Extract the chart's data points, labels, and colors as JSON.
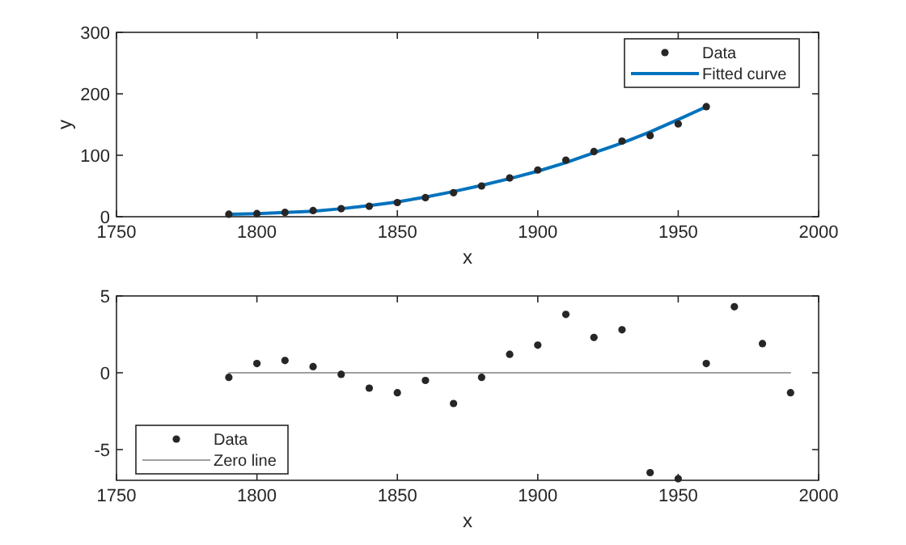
{
  "chart_data": [
    {
      "type": "scatter",
      "xlabel": "x",
      "ylabel": "y",
      "x": [
        1790,
        1800,
        1810,
        1820,
        1830,
        1840,
        1850,
        1860,
        1870,
        1880,
        1890,
        1900,
        1910,
        1920,
        1930,
        1940,
        1950,
        1960
      ],
      "xlim": [
        1750,
        2000
      ],
      "xticks": [
        1750,
        1800,
        1850,
        1900,
        1950,
        2000
      ],
      "ylim": [
        0,
        300
      ],
      "yticks": [
        0,
        100,
        200,
        300
      ],
      "legend": "top right",
      "marker": "circle",
      "series": [
        {
          "name": "Data",
          "color": "#262626",
          "values": [
            4,
            5,
            7,
            10,
            13,
            17,
            23,
            31,
            39,
            50,
            63,
            76,
            92,
            106,
            123,
            132,
            151,
            179
          ]
        },
        {
          "name": "Fitted curve",
          "type": "line",
          "marker": "none",
          "color": "#0072bd",
          "values": [
            4,
            5,
            7,
            9,
            13,
            18,
            24,
            32,
            41,
            51,
            62,
            74,
            88,
            104,
            120,
            138,
            158,
            179
          ]
        }
      ]
    },
    {
      "type": "scatter",
      "xlabel": "x",
      "x": [
        1790,
        1800,
        1810,
        1820,
        1830,
        1840,
        1850,
        1860,
        1870,
        1880,
        1890,
        1900,
        1910,
        1920,
        1930,
        1940,
        1950,
        1960,
        1970,
        1980,
        1990
      ],
      "xlim": [
        1750,
        2000
      ],
      "xticks": [
        1750,
        1800,
        1850,
        1900,
        1950,
        2000
      ],
      "ylim": [
        -7,
        5
      ],
      "yticks": [
        {
          "value": -5,
          "label": "-5"
        },
        0,
        5
      ],
      "legend": "bottom left",
      "marker": "circle",
      "series": [
        {
          "name": "Data",
          "color": "#262626",
          "values": [
            -0.3,
            0.6,
            0.8,
            0.4,
            -0.1,
            -1.0,
            -1.3,
            -0.5,
            -2.0,
            -0.3,
            1.2,
            1.8,
            3.8,
            2.3,
            2.8,
            -6.5,
            -6.9,
            0.6,
            4.3,
            1.9,
            -1.3
          ]
        },
        {
          "name": "Zero line",
          "type": "line",
          "marker": "none",
          "color": "#808080",
          "x": [
            1790,
            1990
          ],
          "values": [
            0,
            0
          ]
        }
      ]
    }
  ]
}
